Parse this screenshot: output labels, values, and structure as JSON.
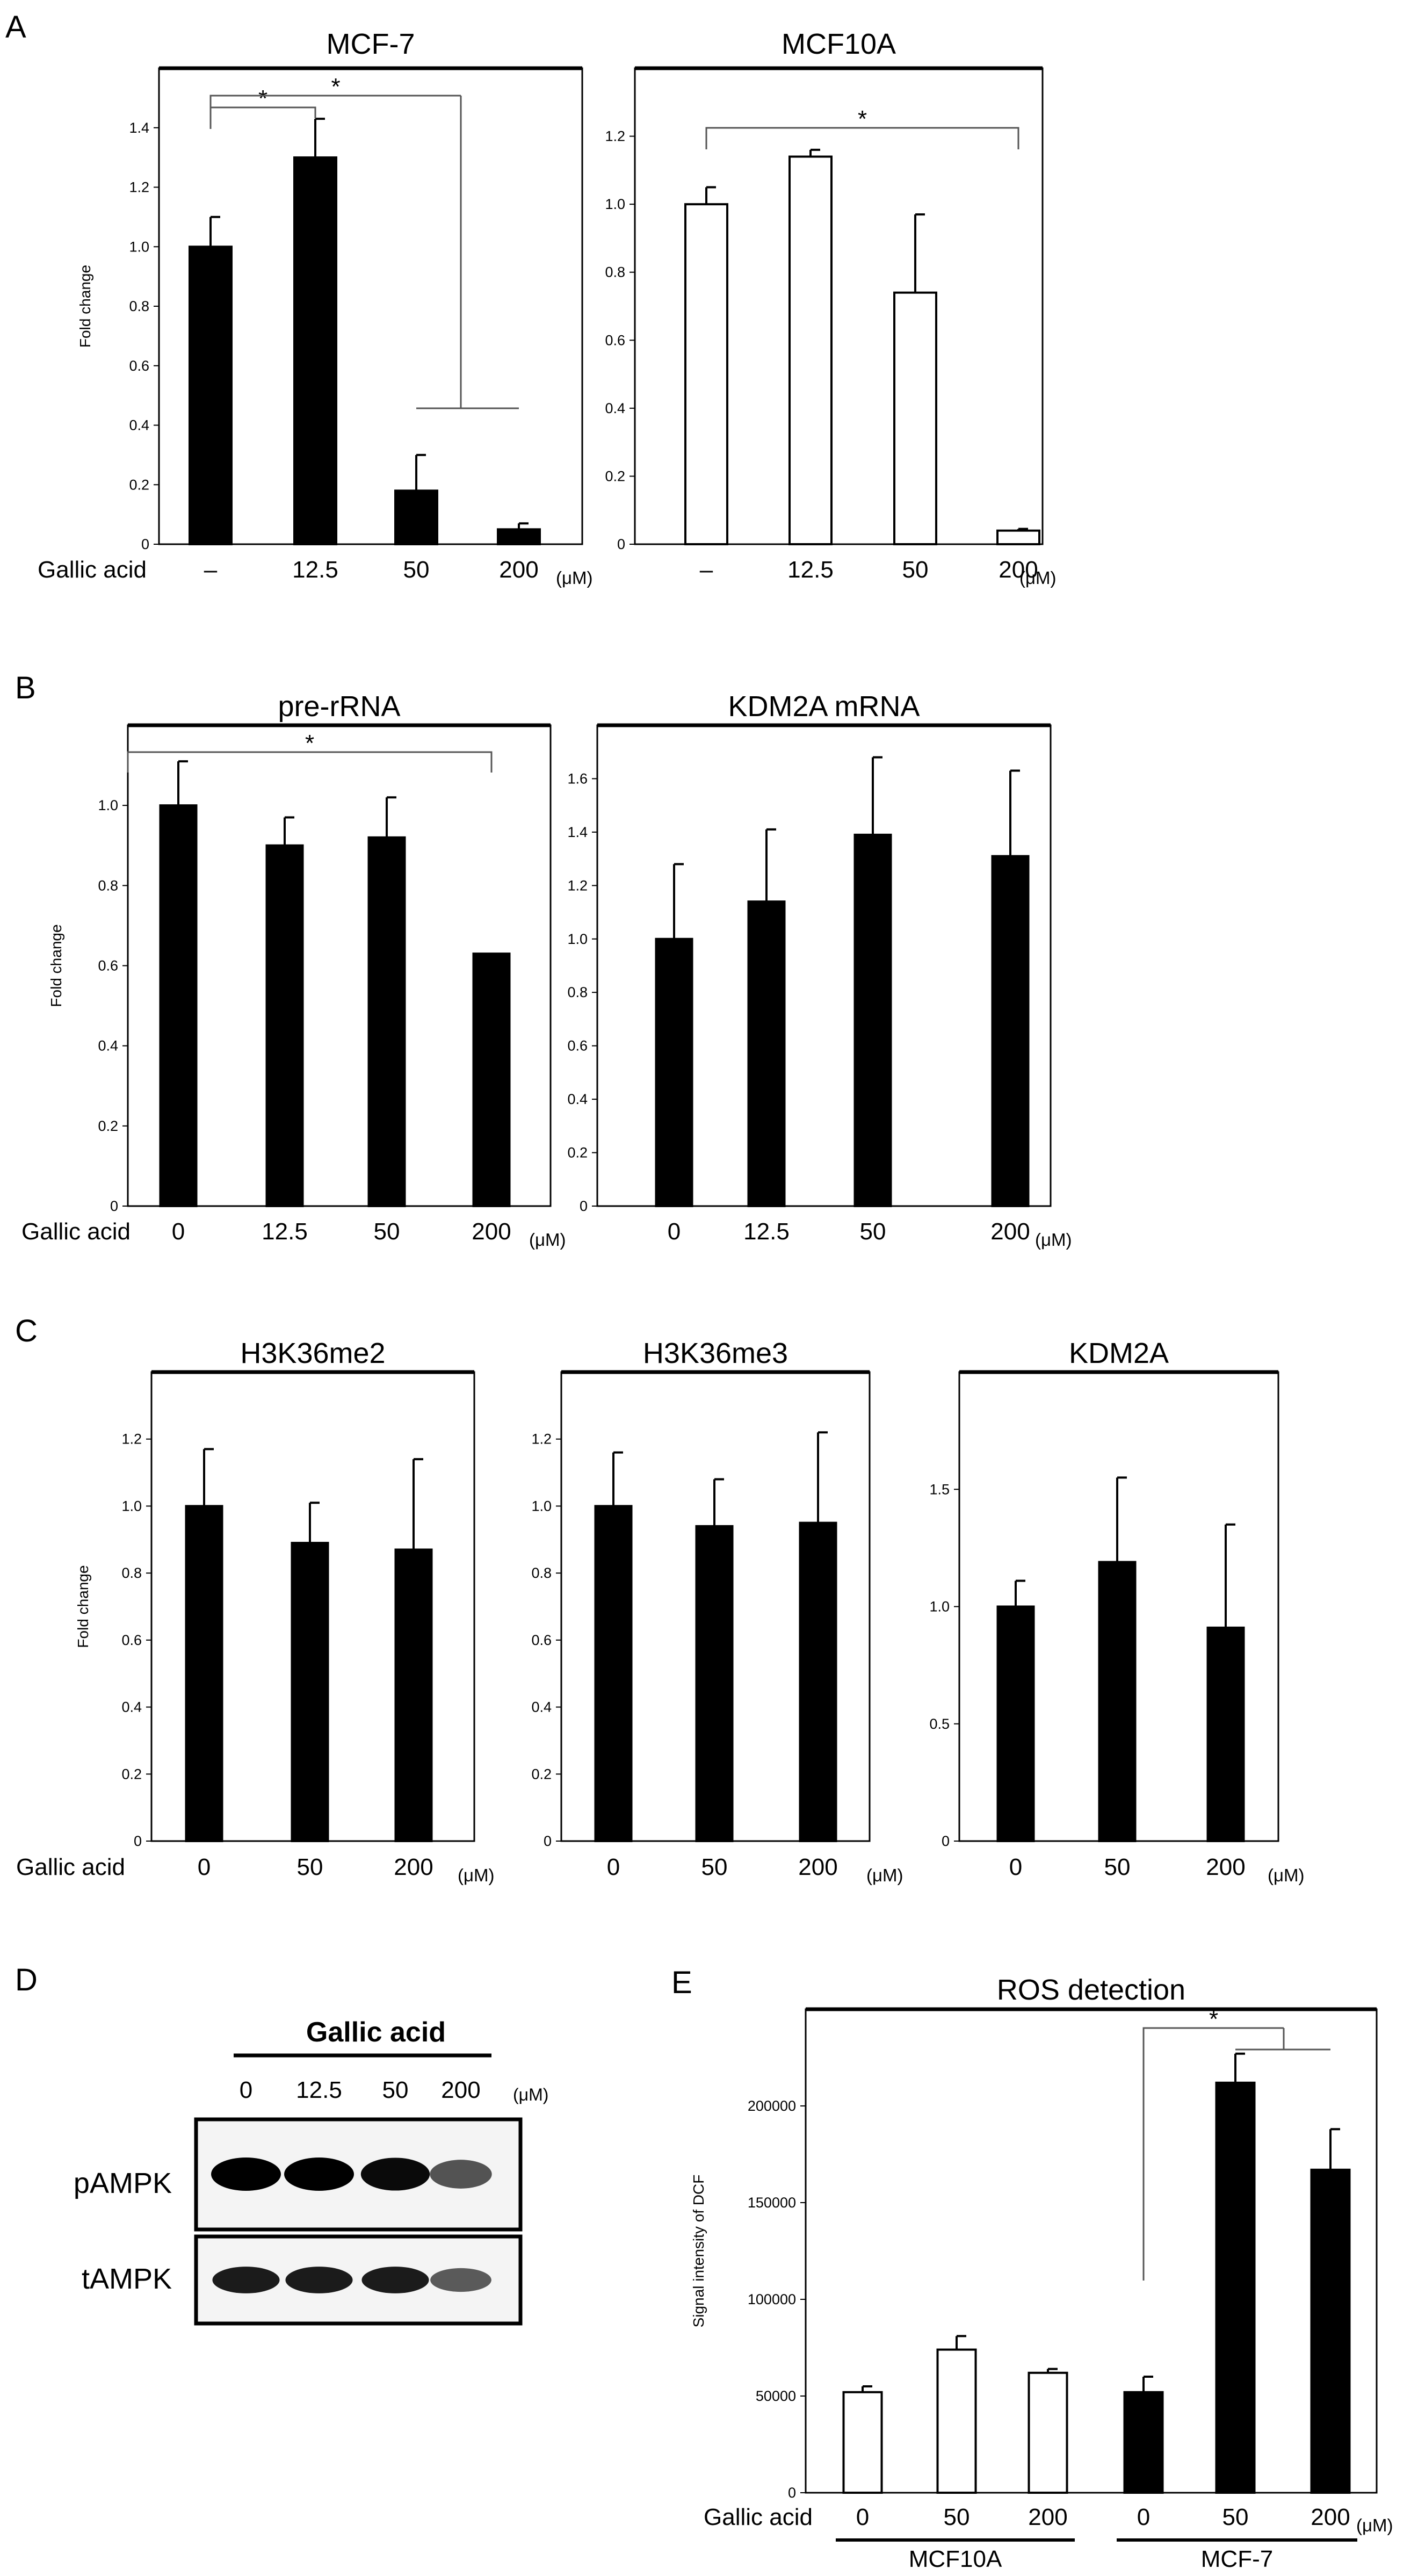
{
  "panels": [
    {
      "letter": "A"
    },
    {
      "letter": "B"
    },
    {
      "letter": "C"
    },
    {
      "letter": "D"
    },
    {
      "letter": "E"
    }
  ],
  "chart_data": [
    {
      "panel": "A",
      "type": "bar",
      "title": "MCF-7",
      "ylabel": "Fold change",
      "row_label": "Gallic acid",
      "unit": "(μM)",
      "categories": [
        "–",
        "12.5",
        "50",
        "200"
      ],
      "values": [
        1.0,
        1.3,
        0.18,
        0.05
      ],
      "errors": [
        0.1,
        0.13,
        0.12,
        0.02
      ],
      "ylim": [
        0,
        1.6
      ],
      "yticks": [
        0,
        0.2,
        0.4,
        0.6,
        0.8,
        1.0,
        1.2,
        1.4
      ],
      "ytick_labels": [
        "0",
        "0.2",
        "0.4",
        "0.6",
        "0.8",
        "1.0",
        "1.2",
        "1.4"
      ],
      "bar_color": "#000000",
      "significance": [
        "*",
        "*"
      ]
    },
    {
      "panel": "A",
      "type": "bar",
      "title": "MCF10A",
      "ylabel": "",
      "row_label": "",
      "unit": "(μM)",
      "categories": [
        "–",
        "12.5",
        "50",
        "200"
      ],
      "values": [
        1.0,
        1.14,
        0.74,
        0.04
      ],
      "errors": [
        0.05,
        0.02,
        0.23,
        0.005
      ],
      "ylim": [
        0,
        1.4
      ],
      "yticks": [
        0,
        0.2,
        0.4,
        0.6,
        0.8,
        1.0,
        1.2
      ],
      "ytick_labels": [
        "0",
        "0.2",
        "0.4",
        "0.6",
        "0.8",
        "1.0",
        "1.2"
      ],
      "bar_color": "#ffffff",
      "significance": [
        "*"
      ]
    },
    {
      "panel": "B",
      "type": "bar",
      "title": "pre-rRNA",
      "ylabel": "Fold change",
      "row_label": "Gallic acid",
      "unit": "(μM)",
      "categories": [
        "0",
        "12.5",
        "50",
        "200"
      ],
      "values": [
        1.0,
        0.9,
        0.92,
        0.63
      ],
      "errors": [
        0.11,
        0.07,
        0.1,
        0.0
      ],
      "ylim": [
        0,
        1.2
      ],
      "yticks": [
        0,
        0.2,
        0.4,
        0.6,
        0.8,
        1.0
      ],
      "ytick_labels": [
        "0",
        "0.2",
        "0.4",
        "0.6",
        "0.8",
        "1.0"
      ],
      "bar_color": "#000000",
      "significance": [
        "*"
      ]
    },
    {
      "panel": "B",
      "type": "bar",
      "title": "KDM2A mRNA",
      "ylabel": "",
      "row_label": "",
      "unit": "(μM)",
      "categories": [
        "0",
        "12.5",
        "50",
        "200"
      ],
      "values": [
        1.0,
        1.14,
        1.39,
        1.31
      ],
      "errors": [
        0.28,
        0.27,
        0.29,
        0.32
      ],
      "ylim": [
        0,
        1.8
      ],
      "yticks": [
        0,
        0.2,
        0.4,
        0.6,
        0.8,
        1.0,
        1.2,
        1.4,
        1.6
      ],
      "ytick_labels": [
        "0",
        "0.2",
        "0.4",
        "0.6",
        "0.8",
        "1.0",
        "1.2",
        "1.4",
        "1.6"
      ],
      "bar_color": "#000000",
      "significance": []
    },
    {
      "panel": "C",
      "type": "bar",
      "title": "H3K36me2",
      "ylabel": "Fold change",
      "row_label": "Gallic acid",
      "unit": "(μM)",
      "categories": [
        "0",
        "50",
        "200"
      ],
      "values": [
        1.0,
        0.89,
        0.87
      ],
      "errors": [
        0.17,
        0.12,
        0.27
      ],
      "ylim": [
        0,
        1.4
      ],
      "yticks": [
        0,
        0.2,
        0.4,
        0.6,
        0.8,
        1.0,
        1.2
      ],
      "ytick_labels": [
        "0",
        "0.2",
        "0.4",
        "0.6",
        "0.8",
        "1.0",
        "1.2"
      ],
      "bar_color": "#000000",
      "significance": []
    },
    {
      "panel": "C",
      "type": "bar",
      "title": "H3K36me3",
      "ylabel": "",
      "row_label": "",
      "unit": "(μM)",
      "categories": [
        "0",
        "50",
        "200"
      ],
      "values": [
        1.0,
        0.94,
        0.95
      ],
      "errors": [
        0.16,
        0.14,
        0.27
      ],
      "ylim": [
        0,
        1.4
      ],
      "yticks": [
        0,
        0.2,
        0.4,
        0.6,
        0.8,
        1.0,
        1.2
      ],
      "ytick_labels": [
        "0",
        "0.2",
        "0.4",
        "0.6",
        "0.8",
        "1.0",
        "1.2"
      ],
      "bar_color": "#000000",
      "significance": []
    },
    {
      "panel": "C",
      "type": "bar",
      "title": "KDM2A",
      "ylabel": "",
      "row_label": "",
      "unit": "(μM)",
      "categories": [
        "0",
        "50",
        "200"
      ],
      "values": [
        1.0,
        1.19,
        0.91
      ],
      "errors": [
        0.11,
        0.36,
        0.44
      ],
      "ylim": [
        0,
        2.0
      ],
      "yticks": [
        0,
        0.5,
        1.0,
        1.5
      ],
      "ytick_labels": [
        "0",
        "0.5",
        "1.0",
        "1.5"
      ],
      "bar_color": "#000000",
      "significance": []
    },
    {
      "panel": "E",
      "type": "bar",
      "title": "ROS detection",
      "ylabel": "Signal intensity of DCF",
      "row_label": "Gallic acid",
      "unit": "(μM)",
      "categories": [
        "0",
        "50",
        "200",
        "0",
        "50",
        "200"
      ],
      "values": [
        52000,
        74000,
        62000,
        52000,
        212000,
        167000
      ],
      "errors": [
        3000,
        7000,
        2000,
        8000,
        15000,
        21000
      ],
      "bar_colors": [
        "#ffffff",
        "#ffffff",
        "#ffffff",
        "#000000",
        "#000000",
        "#000000"
      ],
      "ylim": [
        0,
        250000
      ],
      "yticks": [
        0,
        50000,
        100000,
        150000,
        200000
      ],
      "ytick_labels": [
        "0",
        "50000",
        "100000",
        "150000",
        "200000"
      ],
      "groups": [
        {
          "label": "MCF10A",
          "bars": [
            0,
            1,
            2
          ]
        },
        {
          "label": "MCF-7",
          "bars": [
            3,
            4,
            5
          ]
        }
      ],
      "significance": [
        "*"
      ]
    }
  ],
  "blot": {
    "treatment_label": "Gallic acid",
    "concentrations": [
      "0",
      "12.5",
      "50",
      "200"
    ],
    "unit": "(μM)",
    "rows": [
      {
        "label": "pAMPK",
        "band_intensity": [
          1.0,
          1.0,
          0.95,
          0.55
        ]
      },
      {
        "label": "tAMPK",
        "band_intensity": [
          0.85,
          0.85,
          0.85,
          0.5
        ]
      }
    ]
  }
}
